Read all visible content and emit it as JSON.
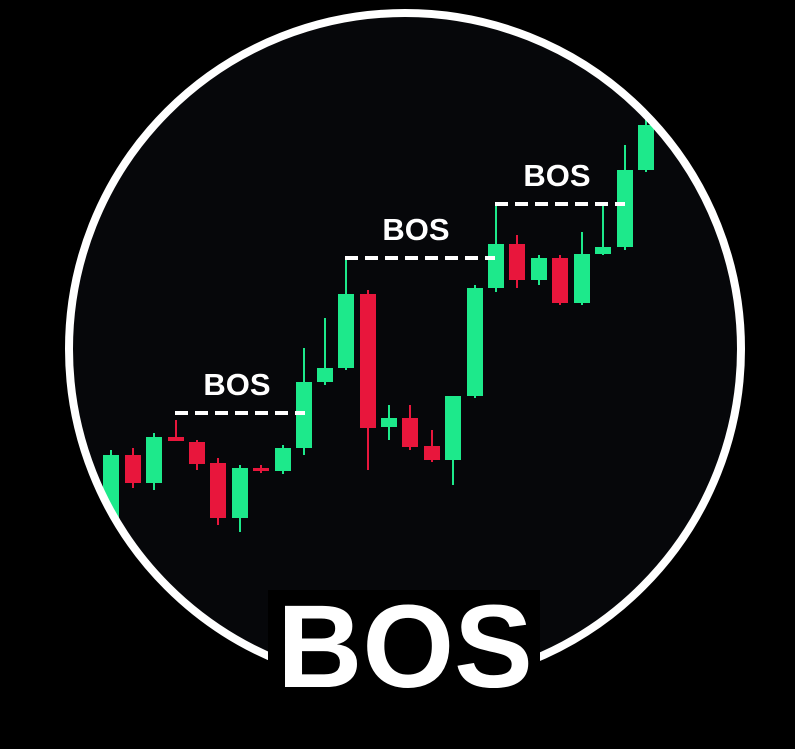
{
  "labels": [
    "BOS",
    "BOS",
    "BOS"
  ],
  "title": "BOS"
}
